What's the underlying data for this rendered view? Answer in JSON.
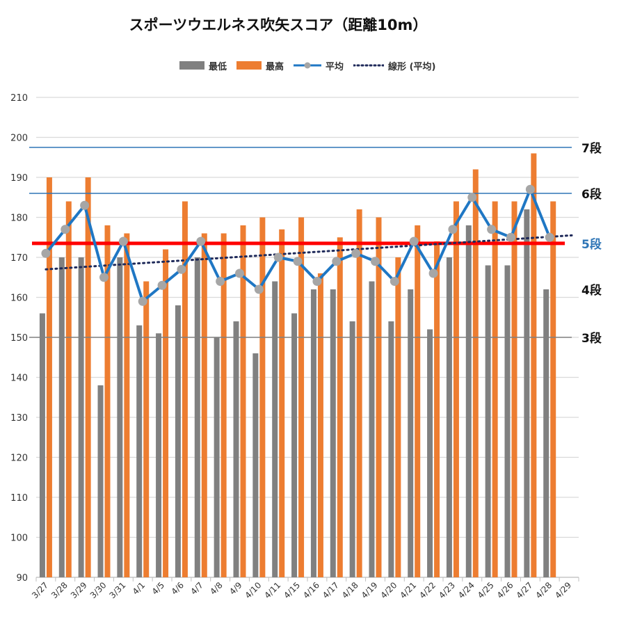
{
  "chart_data": {
    "type": "bar",
    "title": "スポーツウエルネス吹矢スコア（距離10m）",
    "categories": [
      "3/27",
      "3/28",
      "3/29",
      "3/30",
      "3/31",
      "4/1",
      "4/5",
      "4/6",
      "4/7",
      "4/8",
      "4/9",
      "4/10",
      "4/11",
      "4/15",
      "4/16",
      "4/17",
      "4/18",
      "4/19",
      "4/20",
      "4/21",
      "4/22",
      "4/23",
      "4/24",
      "4/25",
      "4/26",
      "4/27",
      "4/28",
      "4/29"
    ],
    "series": [
      {
        "name": "最低",
        "type": "bar",
        "color": "#808080",
        "values": [
          156,
          170,
          170,
          138,
          170,
          153,
          151,
          158,
          170,
          150,
          154,
          146,
          164,
          156,
          162,
          162,
          154,
          164,
          154,
          162,
          152,
          170,
          178,
          168,
          168,
          182,
          162,
          null
        ]
      },
      {
        "name": "最高",
        "type": "bar",
        "color": "#ED7D31",
        "values": [
          190,
          184,
          190,
          178,
          176,
          164,
          172,
          184,
          176,
          176,
          178,
          180,
          177,
          180,
          166,
          175,
          182,
          180,
          170,
          178,
          174,
          184,
          192,
          184,
          184,
          196,
          184,
          null
        ]
      },
      {
        "name": "平均",
        "type": "line",
        "color": "#1F77C4",
        "marker_color": "#A6A6A6",
        "values": [
          171,
          177,
          183,
          165,
          174,
          159,
          163,
          167,
          174,
          164,
          166,
          162,
          170,
          169,
          164,
          169,
          171,
          169,
          164,
          174,
          166,
          177,
          185,
          177,
          175,
          187,
          175,
          null
        ]
      },
      {
        "name": "線形 (平均)",
        "type": "trendline",
        "color": "#1F2A5A",
        "start": 167,
        "end": 175.5
      }
    ],
    "ylim": [
      90,
      210
    ],
    "yticks": [
      90,
      100,
      110,
      120,
      130,
      140,
      150,
      160,
      170,
      180,
      190,
      200,
      210
    ],
    "grid": true,
    "legend_position": "top",
    "reference_lines": [
      {
        "label": "7段",
        "value": 197.5,
        "color": "#2E75B6",
        "label_color": "#111111"
      },
      {
        "label": "6段",
        "value": 186,
        "color": "#2E75B6",
        "label_color": "#111111"
      },
      {
        "label": "5段",
        "value": 173.5,
        "color": "#FF0000",
        "label_color": "#2E75B6"
      },
      {
        "label": "4段",
        "value": 162,
        "color": null,
        "label_color": "#111111"
      },
      {
        "label": "3段",
        "value": 150,
        "color": "#808080",
        "label_color": "#111111"
      }
    ]
  }
}
